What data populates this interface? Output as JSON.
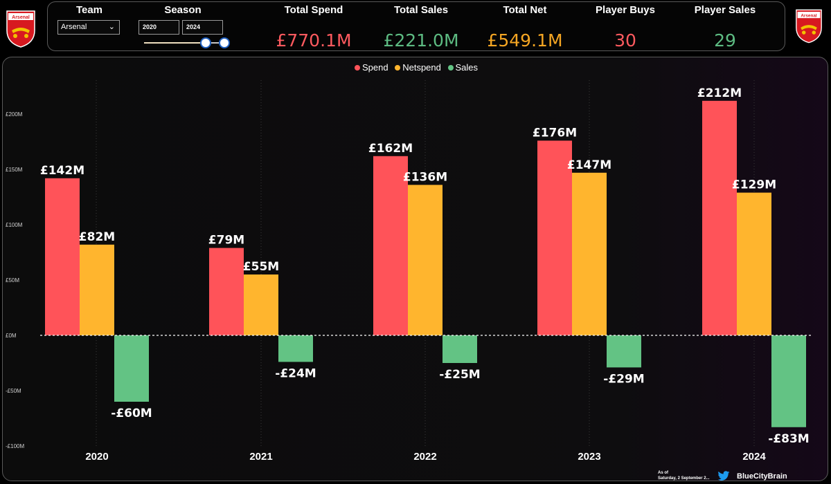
{
  "header": {
    "team_label": "Team",
    "team_value": "Arsenal",
    "season_label": "Season",
    "season_from": "2020",
    "season_to": "2024",
    "crest_text": "Arsenal",
    "kpis": [
      {
        "label": "Total Spend",
        "value": "£770.1M",
        "color": "#ff5a5f"
      },
      {
        "label": "Total Sales",
        "value": "£221.0M",
        "color": "#5dbb82"
      },
      {
        "label": "Total Net",
        "value": "£549.1M",
        "color": "#f5a623"
      },
      {
        "label": "Player Buys",
        "value": "30",
        "color": "#ff5a5f"
      },
      {
        "label": "Player Sales",
        "value": "29",
        "color": "#5dbb82"
      }
    ]
  },
  "legend": [
    {
      "name": "Spend",
      "color": "#ff5359"
    },
    {
      "name": "Netspend",
      "color": "#ffb52e"
    },
    {
      "name": "Sales",
      "color": "#63c384"
    }
  ],
  "chart_data": {
    "type": "bar",
    "categories": [
      "2020",
      "2021",
      "2022",
      "2023",
      "2024"
    ],
    "series": [
      {
        "name": "Spend",
        "color": "#ff5359",
        "values": [
          142,
          79,
          162,
          176,
          212
        ],
        "labels": [
          "£142M",
          "£79M",
          "£162M",
          "£176M",
          "£212M"
        ]
      },
      {
        "name": "Netspend",
        "color": "#ffb52e",
        "values": [
          82,
          55,
          136,
          147,
          129
        ],
        "labels": [
          "£82M",
          "£55M",
          "£136M",
          "£147M",
          "£129M"
        ]
      },
      {
        "name": "Sales",
        "color": "#63c384",
        "values": [
          -60,
          -24,
          -25,
          -29,
          -83
        ],
        "labels": [
          "-£60M",
          "-£24M",
          "-£25M",
          "-£29M",
          "-£83M"
        ]
      }
    ],
    "y_ticks": [
      {
        "value": 200,
        "label": "£200M"
      },
      {
        "value": 150,
        "label": "£150M"
      },
      {
        "value": 100,
        "label": "£100M"
      },
      {
        "value": 50,
        "label": "£50M"
      },
      {
        "value": 0,
        "label": "£0M"
      },
      {
        "value": -50,
        "label": "-£50M"
      },
      {
        "value": -100,
        "label": "-£100M"
      }
    ],
    "ylim": [
      -100,
      220
    ],
    "legend_position": "top-center",
    "zero_line": "dashed"
  },
  "footer": {
    "as_of_label": "As of",
    "as_of_date": "Saturday, 2 September 2...",
    "brand": "BlueCityBrain"
  }
}
